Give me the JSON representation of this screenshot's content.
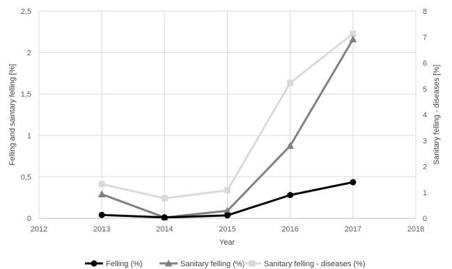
{
  "chart_data": {
    "type": "line",
    "title": "",
    "xlabel": "Year",
    "ylabel": "Felling and saintary felling [%]",
    "y2label": "Sanitary felling - diseases [%]",
    "xlim": [
      2012,
      2018
    ],
    "ylim": [
      0,
      2.5
    ],
    "y2lim": [
      0,
      8
    ],
    "x_ticks": [
      "2012",
      "2013",
      "2014",
      "2015",
      "2016",
      "2017",
      "2018"
    ],
    "y_ticks": [
      "0",
      "0,5",
      "1",
      "1,5",
      "2",
      "2,5"
    ],
    "y2_ticks": [
      "0",
      "1",
      "2",
      "3",
      "4",
      "5",
      "6",
      "7",
      "8"
    ],
    "grid": true,
    "legend_position": "bottom",
    "series": [
      {
        "name": "Felling (%)",
        "axis": "left",
        "color": "#000000",
        "marker": "circle",
        "x": [
          2013,
          2014,
          2015,
          2016,
          2017
        ],
        "y": [
          0.04,
          0.01,
          0.035,
          0.28,
          0.435
        ]
      },
      {
        "name": "Sanitary felling (%)",
        "axis": "left",
        "color": "#808080",
        "marker": "triangle",
        "x": [
          2013,
          2014,
          2015,
          2016,
          2017
        ],
        "y": [
          0.29,
          0.01,
          0.09,
          0.875,
          2.16
        ]
      },
      {
        "name": "Sanitary felling - diseases (%)",
        "axis": "right",
        "color": "#d9d9d9",
        "marker": "square",
        "x": [
          2013,
          2014,
          2015,
          2016,
          2017
        ],
        "y": [
          1.32,
          0.77,
          1.08,
          5.23,
          7.13
        ]
      }
    ]
  }
}
